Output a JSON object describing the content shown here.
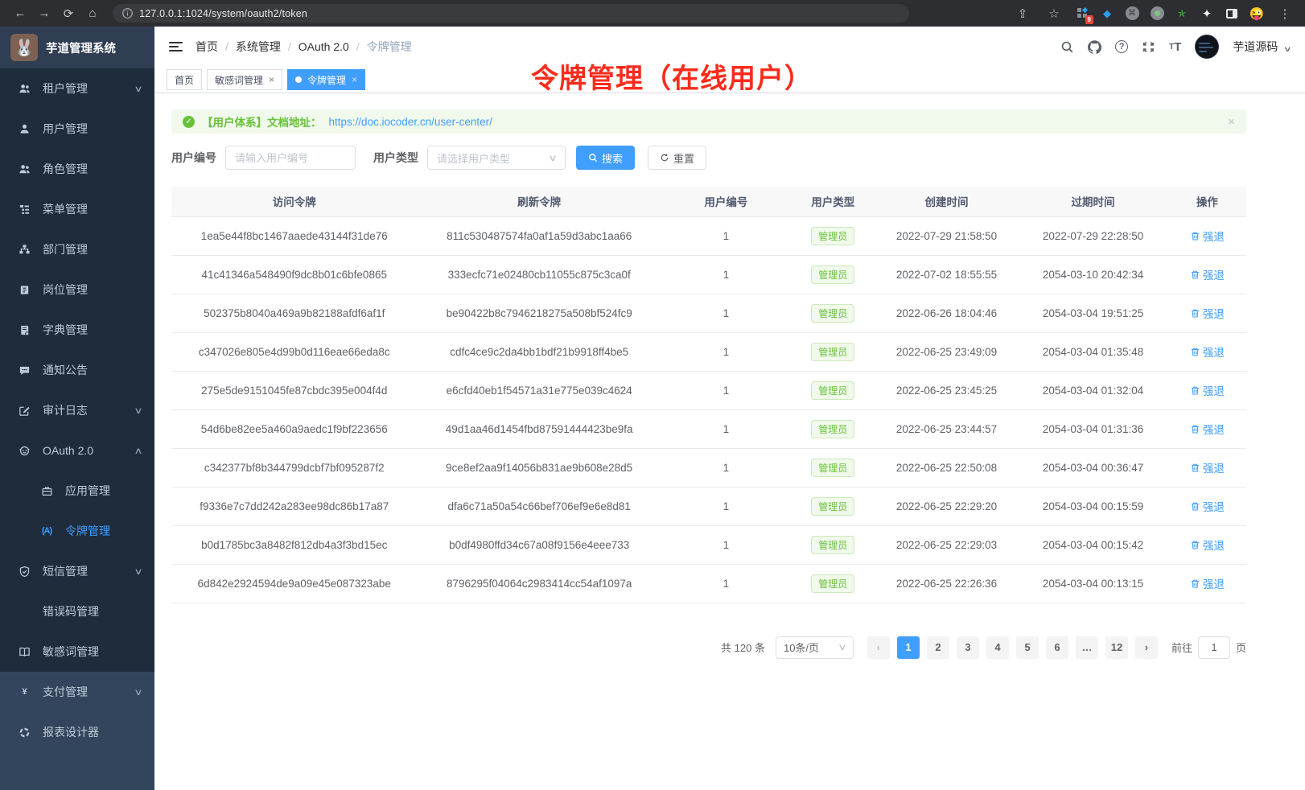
{
  "browser": {
    "url": "127.0.0.1:1024/system/oauth2/token",
    "extension_badge": "9"
  },
  "sidebar": {
    "app_title": "芋道管理系统",
    "menu": [
      {
        "label": "租户管理",
        "icon": "tenant-users-icon",
        "chevron": "down"
      },
      {
        "label": "用户管理",
        "icon": "user-icon"
      },
      {
        "label": "角色管理",
        "icon": "role-users-icon"
      },
      {
        "label": "菜单管理",
        "icon": "menu-tree-icon"
      },
      {
        "label": "部门管理",
        "icon": "dept-org-icon"
      },
      {
        "label": "岗位管理",
        "icon": "post-badge-icon"
      },
      {
        "label": "字典管理",
        "icon": "dict-book-icon"
      },
      {
        "label": "通知公告",
        "icon": "notice-message-icon"
      },
      {
        "label": "审计日志",
        "icon": "audit-edit-icon",
        "chevron": "down"
      },
      {
        "label": "OAuth 2.0",
        "icon": "oauth-face-icon",
        "chevron": "up"
      },
      {
        "label": "应用管理",
        "icon": "app-briefcase-icon",
        "sub": true
      },
      {
        "label": "令牌管理",
        "icon": "token-signal-icon",
        "sub": true,
        "active": true
      },
      {
        "label": "短信管理",
        "icon": "sms-shield-icon",
        "chevron": "down"
      },
      {
        "label": "错误码管理",
        "icon": "error-code-icon"
      },
      {
        "label": "敏感词管理",
        "icon": "sensitive-book-icon"
      },
      {
        "label": "支付管理",
        "icon": "pay-yen-icon",
        "chevron": "down",
        "section": "light"
      },
      {
        "label": "报表设计器",
        "icon": "report-circle-icon",
        "section": "light"
      }
    ]
  },
  "navbar": {
    "breadcrumb": [
      "首页",
      "系统管理",
      "OAuth 2.0",
      "令牌管理"
    ],
    "username": "芋道源码"
  },
  "tabs": [
    {
      "label": "首页"
    },
    {
      "label": "敏感词管理",
      "closable": true
    },
    {
      "label": "令牌管理",
      "closable": true,
      "active": true
    }
  ],
  "annotation": {
    "text": "令牌管理（在线用户）",
    "color": "#fa2c1c"
  },
  "alert": {
    "prefix": "【用户体系】文档地址：",
    "link": "https://doc.iocoder.cn/user-center/",
    "close": "×"
  },
  "filters": {
    "user_id_label": "用户编号",
    "user_id_placeholder": "请输入用户编号",
    "user_type_label": "用户类型",
    "user_type_placeholder": "请选择用户类型",
    "search_label": "搜索",
    "reset_label": "重置"
  },
  "table": {
    "headers": [
      "访问令牌",
      "刷新令牌",
      "用户编号",
      "用户类型",
      "创建时间",
      "过期时间",
      "操作"
    ],
    "badge_label": "管理员",
    "action_label": "强退",
    "rows": [
      {
        "access": "1ea5e44f8bc1467aaede43144f31de76",
        "refresh": "811c530487574fa0af1a59d3abc1aa66",
        "user_id": "1",
        "created": "2022-07-29 21:58:50",
        "expires": "2022-07-29 22:28:50"
      },
      {
        "access": "41c41346a548490f9dc8b01c6bfe0865",
        "refresh": "333ecfc71e02480cb11055c875c3ca0f",
        "user_id": "1",
        "created": "2022-07-02 18:55:55",
        "expires": "2054-03-10 20:42:34"
      },
      {
        "access": "502375b8040a469a9b82188afdf6af1f",
        "refresh": "be90422b8c7946218275a508bf524fc9",
        "user_id": "1",
        "created": "2022-06-26 18:04:46",
        "expires": "2054-03-04 19:51:25"
      },
      {
        "access": "c347026e805e4d99b0d116eae66eda8c",
        "refresh": "cdfc4ce9c2da4bb1bdf21b9918ff4be5",
        "user_id": "1",
        "created": "2022-06-25 23:49:09",
        "expires": "2054-03-04 01:35:48"
      },
      {
        "access": "275e5de9151045fe87cbdc395e004f4d",
        "refresh": "e6cfd40eb1f54571a31e775e039c4624",
        "user_id": "1",
        "created": "2022-06-25 23:45:25",
        "expires": "2054-03-04 01:32:04"
      },
      {
        "access": "54d6be82ee5a460a9aedc1f9bf223656",
        "refresh": "49d1aa46d1454fbd87591444423be9fa",
        "user_id": "1",
        "created": "2022-06-25 23:44:57",
        "expires": "2054-03-04 01:31:36"
      },
      {
        "access": "c342377bf8b344799dcbf7bf095287f2",
        "refresh": "9ce8ef2aa9f14056b831ae9b608e28d5",
        "user_id": "1",
        "created": "2022-06-25 22:50:08",
        "expires": "2054-03-04 00:36:47"
      },
      {
        "access": "f9336e7c7dd242a283ee98dc86b17a87",
        "refresh": "dfa6c71a50a54c66bef706ef9e6e8d81",
        "user_id": "1",
        "created": "2022-06-25 22:29:20",
        "expires": "2054-03-04 00:15:59"
      },
      {
        "access": "b0d1785bc3a8482f812db4a3f3bd15ec",
        "refresh": "b0df4980ffd34c67a08f9156e4eee733",
        "user_id": "1",
        "created": "2022-06-25 22:29:03",
        "expires": "2054-03-04 00:15:42"
      },
      {
        "access": "6d842e2924594de9a09e45e087323abe",
        "refresh": "8796295f04064c2983414cc54af1097a",
        "user_id": "1",
        "created": "2022-06-25 22:26:36",
        "expires": "2054-03-04 00:13:15"
      }
    ]
  },
  "pagination": {
    "total": "共 120 条",
    "page_size": "10条/页",
    "pages": [
      "1",
      "2",
      "3",
      "4",
      "5",
      "6",
      "…",
      "12"
    ],
    "active_page": "1",
    "goto_label": "前往",
    "goto_value": "1",
    "page_unit": "页"
  },
  "colors": {
    "accent": "#409EFF",
    "success": "#67c23a",
    "sidebar_bg": "#1f2c3c"
  }
}
